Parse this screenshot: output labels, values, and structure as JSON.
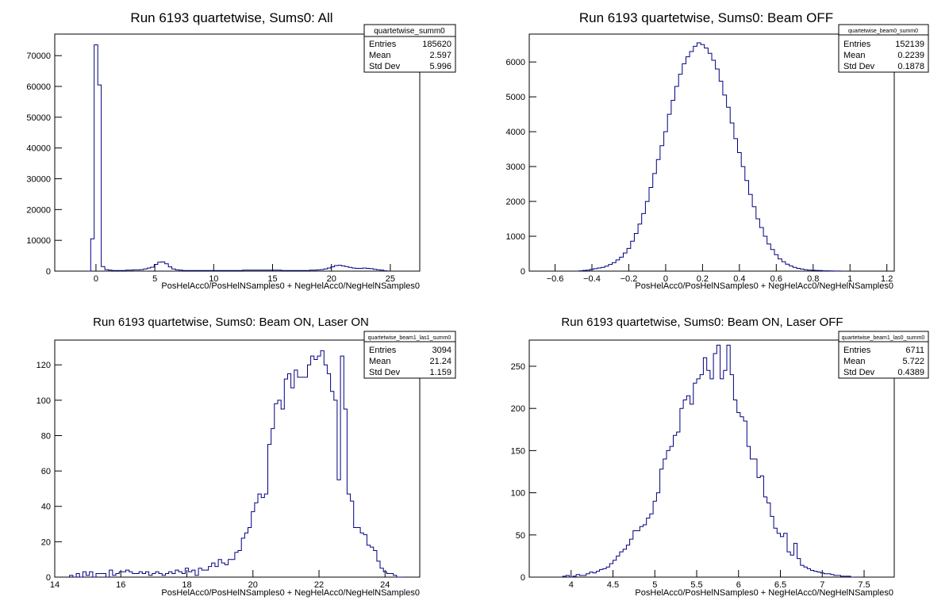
{
  "chart_data": [
    {
      "type": "histogram",
      "title": "Run 6193 quartetwise, Sums0: All",
      "xlabel": "PosHelAcc0/PosHelNSamples0 + NegHelAcc0/NegHelNSamples0",
      "ylabel": "",
      "xlim": [
        -3.5,
        27.5
      ],
      "ylim": [
        0,
        77000
      ],
      "xticks": [
        0,
        5,
        10,
        15,
        20,
        25
      ],
      "xtick_labels": [
        "0",
        "5",
        "10",
        "15",
        "20",
        "25"
      ],
      "yticks": [
        0,
        10000,
        20000,
        30000,
        40000,
        50000,
        60000,
        70000
      ],
      "ytick_labels": [
        "0",
        "10000",
        "20000",
        "30000",
        "40000",
        "50000",
        "60000",
        "70000"
      ],
      "stats": {
        "name": "quartetwise_summ0",
        "rows": [
          {
            "label": "Entries",
            "value": "185620"
          },
          {
            "label": "Mean",
            "value": "2.597"
          },
          {
            "label": "Std Dev",
            "value": "5.996"
          }
        ]
      },
      "x": [
        -0.6,
        -0.3,
        0.0,
        0.3,
        0.6,
        0.9,
        1.2,
        1.5,
        1.8,
        2.1,
        2.4,
        2.7,
        3.0,
        3.3,
        3.6,
        3.9,
        4.2,
        4.5,
        4.8,
        5.1,
        5.4,
        5.7,
        6.0,
        6.3,
        6.6,
        6.9,
        7.2,
        7.5,
        7.8,
        8.1,
        8.4,
        8.7,
        9.0,
        9.3,
        9.6,
        9.9,
        10.2,
        10.5,
        10.8,
        11.1,
        11.4,
        11.7,
        12.0,
        12.3,
        12.6,
        12.9,
        13.2,
        13.5,
        13.8,
        14.1,
        14.4,
        14.7,
        15.0,
        15.3,
        15.6,
        15.9,
        16.2,
        16.5,
        16.8,
        17.1,
        17.4,
        17.7,
        18.0,
        18.3,
        18.6,
        18.9,
        19.2,
        19.5,
        19.8,
        20.1,
        20.4,
        20.7,
        21.0,
        21.3,
        21.6,
        21.9,
        22.2,
        22.5,
        22.8,
        23.1,
        23.4,
        23.7,
        24.0,
        24.3,
        24.6
      ],
      "values": [
        0,
        10500,
        73500,
        60500,
        1500,
        500,
        300,
        200,
        200,
        200,
        200,
        300,
        300,
        400,
        400,
        500,
        700,
        1000,
        1300,
        2200,
        2900,
        3000,
        2400,
        1400,
        700,
        400,
        300,
        200,
        200,
        200,
        200,
        200,
        200,
        200,
        200,
        200,
        200,
        200,
        200,
        200,
        200,
        200,
        200,
        200,
        300,
        300,
        300,
        300,
        300,
        300,
        300,
        300,
        300,
        300,
        300,
        200,
        200,
        200,
        200,
        200,
        200,
        200,
        200,
        300,
        300,
        400,
        500,
        700,
        1000,
        1400,
        1800,
        1900,
        1700,
        1500,
        1200,
        1000,
        900,
        900,
        1000,
        900,
        800,
        600,
        400,
        300,
        100
      ]
    },
    {
      "type": "histogram",
      "title": "Run 6193 quartetwise, Sums0: Beam OFF",
      "xlabel": "PosHelAcc0/PosHelNSamples0 + NegHelAcc0/NegHelNSamples0",
      "ylabel": "",
      "xlim": [
        -0.74,
        1.24
      ],
      "ylim": [
        0,
        6800
      ],
      "xticks": [
        -0.6,
        -0.4,
        -0.2,
        0,
        0.2,
        0.4,
        0.6,
        0.8,
        1,
        1.2
      ],
      "xtick_labels": [
        "−0.6",
        "−0.4",
        "−0.2",
        "0",
        "0.2",
        "0.4",
        "0.6",
        "0.8",
        "1",
        "1.2"
      ],
      "yticks": [
        0,
        1000,
        2000,
        3000,
        4000,
        5000,
        6000
      ],
      "ytick_labels": [
        "0",
        "1000",
        "2000",
        "3000",
        "4000",
        "5000",
        "6000"
      ],
      "stats": {
        "name": "quartetwise_beam0_summ0",
        "rows": [
          {
            "label": "Entries",
            "value": "152139"
          },
          {
            "label": "Mean",
            "value": "0.2239"
          },
          {
            "label": "Std Dev",
            "value": "0.1878"
          }
        ]
      },
      "x": [
        -0.46,
        -0.44,
        -0.42,
        -0.4,
        -0.38,
        -0.36,
        -0.34,
        -0.32,
        -0.3,
        -0.28,
        -0.26,
        -0.24,
        -0.22,
        -0.2,
        -0.18,
        -0.16,
        -0.14,
        -0.12,
        -0.1,
        -0.08,
        -0.06,
        -0.04,
        -0.02,
        0.0,
        0.02,
        0.04,
        0.06,
        0.08,
        0.1,
        0.12,
        0.14,
        0.16,
        0.18,
        0.2,
        0.22,
        0.24,
        0.26,
        0.28,
        0.3,
        0.32,
        0.34,
        0.36,
        0.38,
        0.4,
        0.42,
        0.44,
        0.46,
        0.48,
        0.5,
        0.52,
        0.54,
        0.56,
        0.58,
        0.6,
        0.62,
        0.64,
        0.66,
        0.68,
        0.7,
        0.72,
        0.74,
        0.76,
        0.78,
        0.8,
        0.82,
        0.84,
        0.86,
        0.88,
        0.9,
        0.92,
        0.94
      ],
      "values": [
        10,
        20,
        30,
        50,
        70,
        90,
        110,
        140,
        190,
        240,
        320,
        400,
        520,
        650,
        860,
        1080,
        1350,
        1650,
        2000,
        2400,
        2800,
        3200,
        3600,
        4000,
        4500,
        4900,
        5300,
        5650,
        5950,
        6150,
        6300,
        6450,
        6550,
        6500,
        6400,
        6250,
        6050,
        5800,
        5450,
        5050,
        4700,
        4250,
        3800,
        3400,
        3000,
        2600,
        2200,
        1850,
        1500,
        1250,
        1000,
        780,
        620,
        470,
        350,
        270,
        200,
        150,
        110,
        80,
        60,
        40,
        30,
        25,
        20,
        15,
        10,
        8,
        5,
        3,
        2
      ]
    },
    {
      "type": "histogram",
      "title": "Run 6193 quartetwise, Sums0: Beam ON, Laser ON",
      "xlabel": "PosHelAcc0/PosHelNSamples0 + NegHelAcc0/NegHelNSamples0",
      "ylabel": "",
      "xlim": [
        14,
        25.05
      ],
      "ylim": [
        0,
        134
      ],
      "xticks": [
        14,
        16,
        18,
        20,
        22,
        24
      ],
      "xtick_labels": [
        "14",
        "16",
        "18",
        "20",
        "22",
        "24"
      ],
      "yticks": [
        0,
        20,
        40,
        60,
        80,
        100,
        120
      ],
      "ytick_labels": [
        "0",
        "20",
        "40",
        "60",
        "80",
        "100",
        "120"
      ],
      "stats": {
        "name": "quartetwise_beam1_las1_summ0",
        "rows": [
          {
            "label": "Entries",
            "value": "3094"
          },
          {
            "label": "Mean",
            "value": "21.24"
          },
          {
            "label": "Std Dev",
            "value": "1.159"
          }
        ]
      },
      "x": [
        14.5,
        14.6,
        14.7,
        14.8,
        14.9,
        15.0,
        15.1,
        15.2,
        15.3,
        15.4,
        15.5,
        15.6,
        15.7,
        15.8,
        15.9,
        16.0,
        16.1,
        16.2,
        16.3,
        16.4,
        16.5,
        16.6,
        16.7,
        16.8,
        16.9,
        17.0,
        17.1,
        17.2,
        17.3,
        17.4,
        17.5,
        17.6,
        17.7,
        17.8,
        17.9,
        18.0,
        18.1,
        18.2,
        18.3,
        18.4,
        18.5,
        18.6,
        18.7,
        18.8,
        18.9,
        19.0,
        19.1,
        19.2,
        19.3,
        19.4,
        19.5,
        19.6,
        19.7,
        19.8,
        19.9,
        20.0,
        20.1,
        20.2,
        20.3,
        20.4,
        20.5,
        20.6,
        20.7,
        20.8,
        20.9,
        21.0,
        21.1,
        21.2,
        21.3,
        21.4,
        21.5,
        21.6,
        21.7,
        21.8,
        21.9,
        22.0,
        22.1,
        22.2,
        22.3,
        22.4,
        22.5,
        22.6,
        22.7,
        22.8,
        22.9,
        23.0,
        23.1,
        23.2,
        23.3,
        23.4,
        23.5,
        23.6,
        23.7,
        23.8,
        23.9,
        24.0,
        24.1,
        24.2,
        24.3,
        24.4,
        24.5
      ],
      "values": [
        1,
        0,
        2,
        0,
        3,
        1,
        3,
        0,
        2,
        2,
        2,
        0,
        4,
        1,
        2,
        3,
        3,
        4,
        3,
        2,
        2,
        3,
        2,
        3,
        1,
        2,
        3,
        2,
        1,
        2,
        3,
        2,
        4,
        3,
        2,
        5,
        3,
        4,
        1,
        5,
        4,
        4,
        6,
        8,
        6,
        10,
        8,
        7,
        10,
        10,
        14,
        15,
        22,
        25,
        28,
        37,
        42,
        47,
        45,
        47,
        75,
        84,
        98,
        100,
        95,
        112,
        115,
        107,
        117,
        113,
        113,
        113,
        120,
        125,
        123,
        125,
        128,
        120,
        115,
        105,
        100,
        55,
        125,
        95,
        47,
        43,
        28,
        28,
        25,
        24,
        18,
        17,
        15,
        9,
        5,
        3,
        2,
        2,
        1,
        0,
        0
      ]
    },
    {
      "type": "histogram",
      "title": "Run 6193 quartetwise, Sums0: Beam ON, Laser OFF",
      "xlabel": "PosHelAcc0/PosHelNSamples0 + NegHelAcc0/NegHelNSamples0",
      "ylabel": "",
      "xlim": [
        3.5,
        7.86
      ],
      "ylim": [
        0,
        281
      ],
      "xticks": [
        4,
        4.5,
        5,
        5.5,
        6,
        6.5,
        7,
        7.5
      ],
      "xtick_labels": [
        "4",
        "4.5",
        "5",
        "5.5",
        "6",
        "6.5",
        "7",
        "7.5"
      ],
      "yticks": [
        0,
        50,
        100,
        150,
        200,
        250
      ],
      "ytick_labels": [
        "0",
        "50",
        "100",
        "150",
        "200",
        "250"
      ],
      "stats": {
        "name": "quartetwise_beam1_las0_summ0",
        "rows": [
          {
            "label": "Entries",
            "value": "6711"
          },
          {
            "label": "Mean",
            "value": "5.722"
          },
          {
            "label": "Std Dev",
            "value": "0.4389"
          }
        ]
      },
      "x": [
        3.92,
        3.96,
        4.0,
        4.04,
        4.08,
        4.12,
        4.16,
        4.2,
        4.24,
        4.28,
        4.32,
        4.36,
        4.4,
        4.44,
        4.48,
        4.52,
        4.56,
        4.6,
        4.64,
        4.68,
        4.72,
        4.76,
        4.8,
        4.84,
        4.88,
        4.92,
        4.96,
        5.0,
        5.04,
        5.08,
        5.12,
        5.16,
        5.2,
        5.24,
        5.28,
        5.32,
        5.36,
        5.4,
        5.44,
        5.48,
        5.52,
        5.56,
        5.6,
        5.64,
        5.68,
        5.72,
        5.76,
        5.8,
        5.84,
        5.88,
        5.92,
        5.96,
        6.0,
        6.04,
        6.08,
        6.12,
        6.16,
        6.2,
        6.24,
        6.28,
        6.32,
        6.36,
        6.4,
        6.44,
        6.48,
        6.52,
        6.56,
        6.6,
        6.64,
        6.68,
        6.72,
        6.76,
        6.8,
        6.84,
        6.88,
        6.92,
        6.96,
        7.0,
        7.04,
        7.08,
        7.12,
        7.16,
        7.2,
        7.24,
        7.28,
        7.32,
        7.36
      ],
      "values": [
        1,
        2,
        0,
        1,
        3,
        2,
        2,
        4,
        6,
        5,
        7,
        9,
        10,
        12,
        16,
        20,
        25,
        30,
        33,
        38,
        45,
        55,
        55,
        60,
        62,
        70,
        75,
        90,
        100,
        128,
        140,
        150,
        155,
        168,
        172,
        200,
        210,
        215,
        205,
        230,
        235,
        240,
        260,
        245,
        235,
        265,
        275,
        235,
        245,
        275,
        240,
        210,
        195,
        190,
        185,
        155,
        140,
        140,
        118,
        120,
        95,
        88,
        72,
        58,
        52,
        48,
        52,
        30,
        26,
        40,
        22,
        14,
        12,
        10,
        8,
        7,
        6,
        5,
        4,
        4,
        3,
        2,
        2,
        1,
        1,
        1,
        0
      ]
    }
  ]
}
